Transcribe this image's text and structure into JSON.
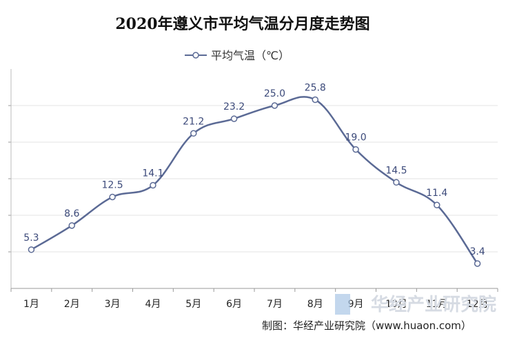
{
  "chart_data": {
    "type": "line",
    "title": "2020年遵义市平均气温分月度走势图",
    "categories": [
      "1月",
      "2月",
      "3月",
      "4月",
      "5月",
      "6月",
      "7月",
      "8月",
      "9月",
      "10月",
      "11月",
      "12月"
    ],
    "series": [
      {
        "name": "平均气温（℃）",
        "values": [
          5.3,
          8.6,
          12.5,
          14.1,
          21.2,
          23.2,
          25.0,
          25.8,
          19.0,
          14.5,
          11.4,
          3.4
        ],
        "labels": [
          "5.3",
          "8.6",
          "12.5",
          "14.1",
          "21.2",
          "23.2",
          "25.0",
          "25.8",
          "19.0",
          "14.5",
          "11.4",
          "3.4"
        ]
      }
    ],
    "xlabel": "",
    "ylabel": "",
    "ylim": [
      0,
      30
    ],
    "legend": "top-center",
    "grid": true,
    "line_color": "#5b6a95"
  },
  "watermark": "华经产业研究院",
  "source": "制图：华经产业研究院（www.huaon.com）"
}
